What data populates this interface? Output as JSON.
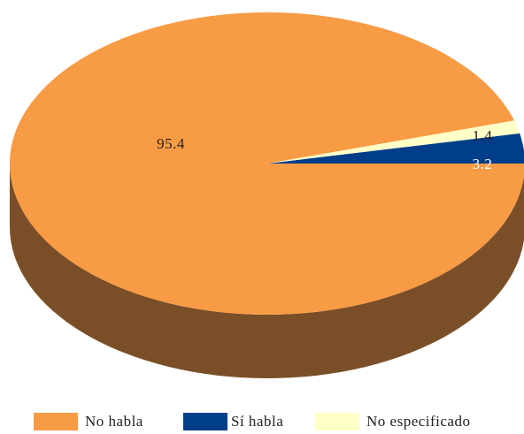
{
  "chart_data": {
    "type": "pie",
    "style": "3d",
    "categories": [
      "No habla",
      "Sí habla",
      "No especificado"
    ],
    "values": [
      95.4,
      3.2,
      1.4
    ],
    "data_labels": [
      "95.4",
      "3.2",
      "1.4"
    ],
    "colors": [
      "#F89B45",
      "#003E8A",
      "#FFFFC8"
    ],
    "side_colors": [
      "#7A4F28",
      "#002B60",
      "#C9C99D"
    ],
    "legend_position": "bottom"
  }
}
